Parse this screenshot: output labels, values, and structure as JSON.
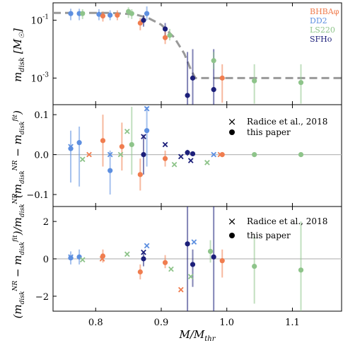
{
  "colors": {
    "BHBA": "#f07d4f",
    "DD2": "#5d8fe0",
    "LS220": "#8ec48a",
    "SFHo": "#1c1f7a",
    "fit": "#999999",
    "zero": "#bbbbbb",
    "axis": "#000000"
  },
  "chart_data": {
    "type": "scatter",
    "x": {
      "label": "M/M_thr",
      "label_main": "M/M",
      "label_sub": "thr",
      "lim": [
        0.735,
        1.175
      ],
      "ticks": [
        0.8,
        0.9,
        1.0,
        1.1
      ],
      "tick_labels": [
        "0.8",
        "0.9",
        "1.0",
        "1.1"
      ]
    },
    "legend_eos": [
      "BHBAφ",
      "DD2",
      "LS220",
      "SFHo"
    ],
    "panels": [
      {
        "id": "top",
        "ylabel": "m_disk [M_☉]",
        "yscale": "log",
        "ylim": [
          0.00012,
          0.4
        ],
        "yticks": [
          0.1,
          0.001
        ],
        "ytick_labels": [
          "10^-1",
          "10^-3"
        ],
        "fit_curve": [
          [
            0.735,
            0.18
          ],
          [
            0.82,
            0.18
          ],
          [
            0.86,
            0.16
          ],
          [
            0.88,
            0.12
          ],
          [
            0.9,
            0.07
          ],
          [
            0.92,
            0.025
          ],
          [
            0.935,
            0.007
          ],
          [
            0.945,
            0.002
          ],
          [
            0.952,
            0.001
          ],
          [
            1.175,
            0.001
          ]
        ],
        "points": [
          {
            "eos": "DD2",
            "x": 0.762,
            "y": 0.17,
            "lo": 0.1,
            "hi": 0.25
          },
          {
            "eos": "DD2",
            "x": 0.775,
            "y": 0.17,
            "lo": 0.1,
            "hi": 0.25
          },
          {
            "eos": "DD2",
            "x": 0.805,
            "y": 0.16,
            "lo": 0.1,
            "hi": 0.24
          },
          {
            "eos": "BHBA",
            "x": 0.811,
            "y": 0.14,
            "lo": 0.09,
            "hi": 0.2
          },
          {
            "eos": "LS220",
            "x": 0.78,
            "y": 0.17,
            "lo": 0.11,
            "hi": 0.24
          },
          {
            "eos": "DD2",
            "x": 0.822,
            "y": 0.15,
            "lo": 0.1,
            "hi": 0.22
          },
          {
            "eos": "BHBA",
            "x": 0.833,
            "y": 0.15,
            "lo": 0.1,
            "hi": 0.22
          },
          {
            "eos": "LS220",
            "x": 0.85,
            "y": 0.2,
            "lo": 0.12,
            "hi": 0.28
          },
          {
            "eos": "LS220",
            "x": 0.855,
            "y": 0.17,
            "lo": 0.11,
            "hi": 0.24
          },
          {
            "eos": "BHBA",
            "x": 0.868,
            "y": 0.08,
            "lo": 0.045,
            "hi": 0.12
          },
          {
            "eos": "DD2",
            "x": 0.878,
            "y": 0.17,
            "lo": 0.1,
            "hi": 0.3
          },
          {
            "eos": "SFHo",
            "x": 0.873,
            "y": 0.1,
            "lo": 0.06,
            "hi": 0.15
          },
          {
            "eos": "SFHo",
            "x": 0.906,
            "y": 0.05,
            "lo": 0.03,
            "hi": 0.08
          },
          {
            "eos": "BHBA",
            "x": 0.906,
            "y": 0.025,
            "lo": 0.015,
            "hi": 0.04
          },
          {
            "eos": "LS220",
            "x": 0.913,
            "y": 0.03,
            "lo": 0.02,
            "hi": 0.05
          },
          {
            "eos": "SFHo",
            "x": 0.94,
            "y": 0.00025,
            "lo": 0.00012,
            "hi": 0.008
          },
          {
            "eos": "SFHo",
            "x": 0.948,
            "y": 0.001,
            "lo": 0.00012,
            "hi": 0.01
          },
          {
            "eos": "SFHo",
            "x": 0.98,
            "y": 0.0004,
            "lo": 0.00012,
            "hi": 0.01
          },
          {
            "eos": "LS220",
            "x": 0.98,
            "y": 0.004,
            "lo": 0.002,
            "hi": 0.008
          },
          {
            "eos": "BHBA",
            "x": 0.993,
            "y": 0.001,
            "lo": 0.00014,
            "hi": 0.003
          },
          {
            "eos": "LS220",
            "x": 1.042,
            "y": 0.0008,
            "lo": 0.00013,
            "hi": 0.003
          },
          {
            "eos": "LS220",
            "x": 1.113,
            "y": 0.0007,
            "lo": 0.00013,
            "hi": 0.003
          }
        ]
      },
      {
        "id": "middle",
        "ylabel": "(m_disk^NR − m_disk^fit)",
        "yscale": "linear",
        "ylim": [
          -0.13,
          0.125
        ],
        "yticks": [
          0.1,
          0.0,
          -0.1
        ],
        "ytick_labels": [
          "0.1",
          "0.0",
          "−0.1"
        ],
        "legend": [
          "Radice et al., 2018",
          "this paper"
        ],
        "crosses": [
          {
            "eos": "DD2",
            "x": 0.762,
            "y": 0.02
          },
          {
            "eos": "BHBA",
            "x": 0.79,
            "y": 0.0
          },
          {
            "eos": "LS220",
            "x": 0.78,
            "y": -0.012
          },
          {
            "eos": "DD2",
            "x": 0.822,
            "y": 0.0
          },
          {
            "eos": "LS220",
            "x": 0.838,
            "y": 0.0
          },
          {
            "eos": "LS220",
            "x": 0.848,
            "y": 0.058
          },
          {
            "eos": "SFHo",
            "x": 0.873,
            "y": 0.045
          },
          {
            "eos": "DD2",
            "x": 0.878,
            "y": 0.115
          },
          {
            "eos": "SFHo",
            "x": 0.906,
            "y": 0.025
          },
          {
            "eos": "LS220",
            "x": 0.92,
            "y": -0.025
          },
          {
            "eos": "SFHo",
            "x": 0.93,
            "y": -0.005
          },
          {
            "eos": "SFHo",
            "x": 0.945,
            "y": -0.015
          },
          {
            "eos": "LS220",
            "x": 0.97,
            "y": -0.02
          },
          {
            "eos": "DD2",
            "x": 0.98,
            "y": 0.0
          },
          {
            "eos": "BHBA",
            "x": 0.99,
            "y": 0.0
          }
        ],
        "points": [
          {
            "eos": "DD2",
            "x": 0.762,
            "y": 0.015,
            "lo": -0.07,
            "hi": 0.06
          },
          {
            "eos": "DD2",
            "x": 0.775,
            "y": 0.03,
            "lo": -0.08,
            "hi": 0.07
          },
          {
            "eos": "BHBA",
            "x": 0.811,
            "y": 0.035,
            "lo": -0.03,
            "hi": 0.1
          },
          {
            "eos": "DD2",
            "x": 0.822,
            "y": -0.04,
            "lo": -0.1,
            "hi": 0.01
          },
          {
            "eos": "BHBA",
            "x": 0.84,
            "y": 0.02,
            "lo": -0.04,
            "hi": 0.08
          },
          {
            "eos": "LS220",
            "x": 0.855,
            "y": 0.025,
            "lo": -0.05,
            "hi": 0.12
          },
          {
            "eos": "BHBA",
            "x": 0.868,
            "y": -0.05,
            "lo": -0.09,
            "hi": -0.01
          },
          {
            "eos": "DD2",
            "x": 0.878,
            "y": 0.06,
            "lo": -0.03,
            "hi": 0.12
          },
          {
            "eos": "SFHo",
            "x": 0.873,
            "y": 0.0,
            "lo": -0.05,
            "hi": 0.05
          },
          {
            "eos": "BHBA",
            "x": 0.906,
            "y": -0.01,
            "lo": -0.03,
            "hi": 0.01
          },
          {
            "eos": "SFHo",
            "x": 0.94,
            "y": 0.005,
            "lo": -0.003,
            "hi": 0.012
          },
          {
            "eos": "SFHo",
            "x": 0.948,
            "y": 0.002,
            "lo": -0.003,
            "hi": 0.007
          },
          {
            "eos": "BHBA",
            "x": 0.993,
            "y": 0.0,
            "lo": -0.003,
            "hi": 0.003
          },
          {
            "eos": "LS220",
            "x": 1.042,
            "y": 0.0,
            "lo": -0.002,
            "hi": 0.002
          },
          {
            "eos": "LS220",
            "x": 1.113,
            "y": 0.0,
            "lo": -0.002,
            "hi": 0.002
          }
        ]
      },
      {
        "id": "bottom",
        "ylabel": "(m_disk^NR − m_disk^fit)/m_disk^NR",
        "yscale": "linear",
        "ylim": [
          -2.8,
          2.8
        ],
        "yticks": [
          2,
          0,
          -2
        ],
        "ytick_labels": [
          "2",
          "0",
          "−2"
        ],
        "legend": [
          "Radice et al., 2018",
          "this paper"
        ],
        "crosses": [
          {
            "eos": "DD2",
            "x": 0.762,
            "y": 0.1
          },
          {
            "eos": "LS220",
            "x": 0.78,
            "y": -0.05
          },
          {
            "eos": "BHBA",
            "x": 0.81,
            "y": 0.0
          },
          {
            "eos": "LS220",
            "x": 0.848,
            "y": 0.25
          },
          {
            "eos": "SFHo",
            "x": 0.873,
            "y": 0.35
          },
          {
            "eos": "DD2",
            "x": 0.878,
            "y": 0.7
          },
          {
            "eos": "LS220",
            "x": 0.915,
            "y": -0.55
          },
          {
            "eos": "BHBA",
            "x": 0.93,
            "y": -1.65
          },
          {
            "eos": "LS220",
            "x": 0.945,
            "y": -0.95
          },
          {
            "eos": "DD2",
            "x": 0.95,
            "y": 0.9
          }
        ],
        "points": [
          {
            "eos": "DD2",
            "x": 0.762,
            "y": 0.05,
            "lo": -0.3,
            "hi": 0.4
          },
          {
            "eos": "DD2",
            "x": 0.775,
            "y": 0.1,
            "lo": -0.3,
            "hi": 0.5
          },
          {
            "eos": "BHBA",
            "x": 0.811,
            "y": 0.15,
            "lo": -0.2,
            "hi": 0.5
          },
          {
            "eos": "BHBA",
            "x": 0.868,
            "y": -0.7,
            "lo": -1.1,
            "hi": -0.3
          },
          {
            "eos": "SFHo",
            "x": 0.873,
            "y": 0.0,
            "lo": -0.4,
            "hi": 0.4
          },
          {
            "eos": "BHBA",
            "x": 0.906,
            "y": -0.2,
            "lo": -0.5,
            "hi": 0.2
          },
          {
            "eos": "SFHo",
            "x": 0.94,
            "y": 0.8,
            "lo": -2.8,
            "hi": 2.8
          },
          {
            "eos": "SFHo",
            "x": 0.948,
            "y": -0.3,
            "lo": -1.5,
            "hi": 0.5
          },
          {
            "eos": "SFHo",
            "x": 0.98,
            "y": 0.1,
            "lo": -2.8,
            "hi": 2.8
          },
          {
            "eos": "LS220",
            "x": 0.975,
            "y": 0.4,
            "lo": -0.2,
            "hi": 1.0
          },
          {
            "eos": "BHBA",
            "x": 0.993,
            "y": -0.1,
            "lo": -1.0,
            "hi": 0.5
          },
          {
            "eos": "LS220",
            "x": 1.042,
            "y": -0.4,
            "lo": -2.4,
            "hi": 1.2
          },
          {
            "eos": "LS220",
            "x": 1.113,
            "y": -0.6,
            "lo": -2.8,
            "hi": 2.0
          }
        ]
      }
    ]
  }
}
